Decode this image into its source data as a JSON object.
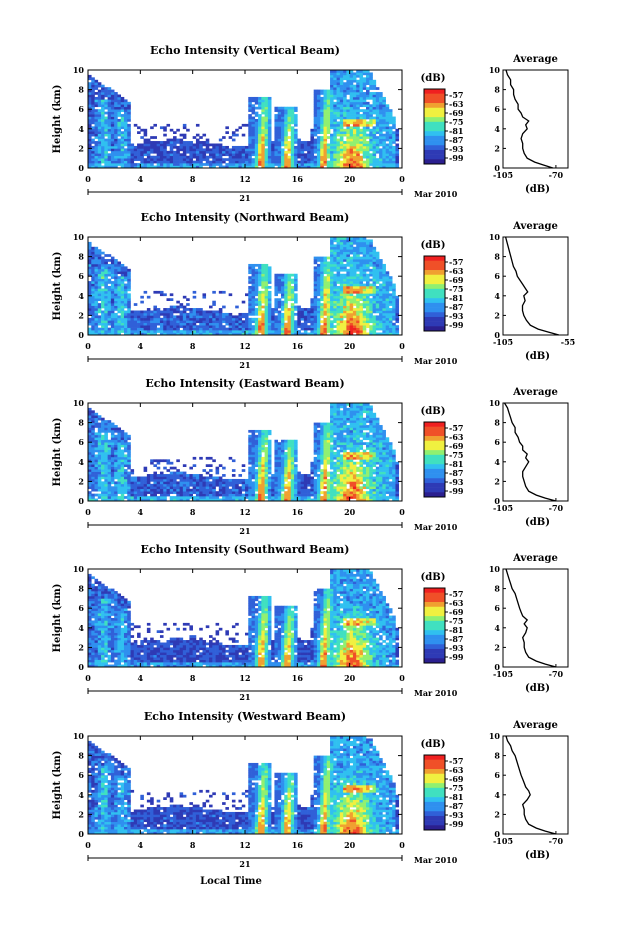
{
  "chart_data": [
    {
      "type": "heatmap",
      "title": "Echo Intensity (Vertical Beam)",
      "ylabel": "Height (km)",
      "ylim": [
        0,
        10
      ],
      "yticks": [
        "0",
        "2",
        "4",
        "6",
        "8",
        "10"
      ],
      "xlim": [
        0,
        24
      ],
      "xticks": [
        "0",
        "4",
        "8",
        "12",
        "16",
        "20",
        "0"
      ],
      "date_day": "21",
      "date_month": "Mar 2010",
      "colorbar": {
        "label": "(dB)",
        "ticks": [
          "-57",
          "-63",
          "-69",
          "-75",
          "-81",
          "-87",
          "-93",
          "-99"
        ]
      },
      "profile": {
        "title": "Average",
        "xlabel": "(dB)",
        "xticks": [
          "-105",
          "-70"
        ],
        "xlim": [
          -105,
          -62
        ],
        "ylim": [
          0,
          10
        ],
        "yticks": [
          "0",
          "2",
          "4",
          "6",
          "8",
          "10"
        ],
        "points": [
          [
            -72,
            0
          ],
          [
            -78,
            0.3
          ],
          [
            -84,
            0.6
          ],
          [
            -89,
            1.0
          ],
          [
            -91,
            1.5
          ],
          [
            -92,
            2.0
          ],
          [
            -92,
            2.5
          ],
          [
            -93,
            3.0
          ],
          [
            -92,
            3.5
          ],
          [
            -89,
            4.0
          ],
          [
            -90,
            4.4
          ],
          [
            -88,
            4.8
          ],
          [
            -92,
            5.2
          ],
          [
            -93,
            5.6
          ],
          [
            -95,
            6.0
          ],
          [
            -95,
            6.5
          ],
          [
            -97,
            7.0
          ],
          [
            -98,
            7.5
          ],
          [
            -98,
            8.0
          ],
          [
            -100,
            8.5
          ],
          [
            -100,
            9.0
          ],
          [
            -102,
            9.5
          ],
          [
            -103,
            10.0
          ]
        ]
      }
    },
    {
      "type": "heatmap",
      "title": "Echo Intensity (Northward Beam)",
      "ylabel": "Height (km)",
      "ylim": [
        0,
        10
      ],
      "yticks": [
        "0",
        "2",
        "4",
        "6",
        "8",
        "10"
      ],
      "xlim": [
        0,
        24
      ],
      "xticks": [
        "0",
        "4",
        "8",
        "12",
        "16",
        "20",
        "0"
      ],
      "date_day": "21",
      "date_month": "Mar 2010",
      "colorbar": {
        "label": "(dB)",
        "ticks": [
          "-57",
          "-63",
          "-69",
          "-75",
          "-81",
          "-87",
          "-93",
          "-99"
        ]
      },
      "profile": {
        "title": "Average",
        "xlabel": "(dB)",
        "xticks": [
          "-105",
          "-55"
        ],
        "xlim": [
          -105,
          -55
        ],
        "ylim": [
          0,
          10
        ],
        "yticks": [
          "0",
          "2",
          "4",
          "6",
          "8",
          "10"
        ],
        "points": [
          [
            -62,
            0
          ],
          [
            -70,
            0.3
          ],
          [
            -78,
            0.6
          ],
          [
            -84,
            1.0
          ],
          [
            -87,
            1.5
          ],
          [
            -89,
            2.0
          ],
          [
            -90,
            2.5
          ],
          [
            -90,
            3.0
          ],
          [
            -88,
            3.5
          ],
          [
            -89,
            4.0
          ],
          [
            -86,
            4.4
          ],
          [
            -88,
            4.8
          ],
          [
            -90,
            5.2
          ],
          [
            -92,
            5.6
          ],
          [
            -94,
            6.0
          ],
          [
            -95,
            6.5
          ],
          [
            -97,
            7.0
          ],
          [
            -98,
            7.5
          ],
          [
            -99,
            8.0
          ],
          [
            -100,
            8.5
          ],
          [
            -101,
            9.0
          ],
          [
            -102,
            9.5
          ],
          [
            -103,
            10.0
          ]
        ]
      }
    },
    {
      "type": "heatmap",
      "title": "Echo Intensity (Eastward Beam)",
      "ylabel": "Height (km)",
      "ylim": [
        0,
        10
      ],
      "yticks": [
        "0",
        "2",
        "4",
        "6",
        "8",
        "10"
      ],
      "xlim": [
        0,
        24
      ],
      "xticks": [
        "0",
        "4",
        "8",
        "12",
        "16",
        "20",
        "0"
      ],
      "date_day": "21",
      "date_month": "Mar 2010",
      "colorbar": {
        "label": "(dB)",
        "ticks": [
          "-57",
          "-63",
          "-69",
          "-75",
          "-81",
          "-87",
          "-93",
          "-99"
        ]
      },
      "profile": {
        "title": "Average",
        "xlabel": "(dB)",
        "xticks": [
          "-105",
          "-70"
        ],
        "xlim": [
          -105,
          -62
        ],
        "ylim": [
          0,
          10
        ],
        "yticks": [
          "0",
          "2",
          "4",
          "6",
          "8",
          "10"
        ],
        "points": [
          [
            -70,
            0
          ],
          [
            -77,
            0.3
          ],
          [
            -83,
            0.6
          ],
          [
            -88,
            1.0
          ],
          [
            -90,
            1.5
          ],
          [
            -91,
            2.0
          ],
          [
            -92,
            2.5
          ],
          [
            -92,
            3.0
          ],
          [
            -90,
            3.5
          ],
          [
            -88,
            4.0
          ],
          [
            -90,
            4.4
          ],
          [
            -89,
            4.8
          ],
          [
            -92,
            5.2
          ],
          [
            -92,
            5.6
          ],
          [
            -94,
            6.0
          ],
          [
            -95,
            6.5
          ],
          [
            -97,
            7.0
          ],
          [
            -97,
            7.5
          ],
          [
            -99,
            8.0
          ],
          [
            -100,
            8.5
          ],
          [
            -101,
            9.0
          ],
          [
            -102,
            9.5
          ],
          [
            -104,
            10.0
          ]
        ]
      }
    },
    {
      "type": "heatmap",
      "title": "Echo Intensity (Southward Beam)",
      "ylabel": "Height (km)",
      "ylim": [
        0,
        10
      ],
      "yticks": [
        "0",
        "2",
        "4",
        "6",
        "8",
        "10"
      ],
      "xlim": [
        0,
        24
      ],
      "xticks": [
        "0",
        "4",
        "8",
        "12",
        "16",
        "20",
        "0"
      ],
      "date_day": "21",
      "date_month": "Mar 2010",
      "colorbar": {
        "label": "(dB)",
        "ticks": [
          "-57",
          "-63",
          "-69",
          "-75",
          "-81",
          "-87",
          "-93",
          "-99"
        ]
      },
      "profile": {
        "title": "Average",
        "xlabel": "(dB)",
        "xticks": [
          "-105",
          "-70"
        ],
        "xlim": [
          -105,
          -62
        ],
        "ylim": [
          0,
          10
        ],
        "yticks": [
          "0",
          "2",
          "4",
          "6",
          "8",
          "10"
        ],
        "points": [
          [
            -70,
            0
          ],
          [
            -77,
            0.3
          ],
          [
            -83,
            0.6
          ],
          [
            -88,
            1.0
          ],
          [
            -90,
            1.5
          ],
          [
            -91,
            2.0
          ],
          [
            -91,
            2.5
          ],
          [
            -92,
            3.0
          ],
          [
            -90,
            3.5
          ],
          [
            -89,
            4.0
          ],
          [
            -91,
            4.4
          ],
          [
            -89,
            4.8
          ],
          [
            -92,
            5.2
          ],
          [
            -93,
            5.6
          ],
          [
            -94,
            6.0
          ],
          [
            -95,
            6.5
          ],
          [
            -96,
            7.0
          ],
          [
            -97,
            7.5
          ],
          [
            -99,
            8.0
          ],
          [
            -100,
            8.5
          ],
          [
            -101,
            9.0
          ],
          [
            -102,
            9.5
          ],
          [
            -103,
            10.0
          ]
        ]
      }
    },
    {
      "type": "heatmap",
      "title": "Echo Intensity (Westward Beam)",
      "ylabel": "Height (km)",
      "ylim": [
        0,
        10
      ],
      "yticks": [
        "0",
        "2",
        "4",
        "6",
        "8",
        "10"
      ],
      "xlim": [
        0,
        24
      ],
      "xticks": [
        "0",
        "4",
        "8",
        "12",
        "16",
        "20",
        "0"
      ],
      "date_day": "21",
      "date_month": "Mar 2010",
      "xlabel": "Local Time",
      "colorbar": {
        "label": "(dB)",
        "ticks": [
          "-57",
          "-63",
          "-69",
          "-75",
          "-81",
          "-87",
          "-93",
          "-99"
        ]
      },
      "profile": {
        "title": "Average",
        "xlabel": "(dB)",
        "xticks": [
          "-105",
          "-70"
        ],
        "xlim": [
          -105,
          -62
        ],
        "ylim": [
          0,
          10
        ],
        "yticks": [
          "0",
          "2",
          "4",
          "6",
          "8",
          "10"
        ],
        "points": [
          [
            -70,
            0
          ],
          [
            -77,
            0.3
          ],
          [
            -83,
            0.6
          ],
          [
            -88,
            1.0
          ],
          [
            -90,
            1.5
          ],
          [
            -91,
            2.0
          ],
          [
            -91,
            2.5
          ],
          [
            -92,
            3.0
          ],
          [
            -89,
            3.5
          ],
          [
            -87,
            4.0
          ],
          [
            -88,
            4.4
          ],
          [
            -90,
            4.8
          ],
          [
            -91,
            5.2
          ],
          [
            -92,
            5.6
          ],
          [
            -93,
            6.0
          ],
          [
            -94,
            6.5
          ],
          [
            -95,
            7.0
          ],
          [
            -96,
            7.5
          ],
          [
            -97,
            8.0
          ],
          [
            -99,
            8.5
          ],
          [
            -100,
            9.0
          ],
          [
            -102,
            9.5
          ],
          [
            -103,
            10.0
          ]
        ]
      }
    }
  ],
  "colors": [
    "#2b1f8f",
    "#2e3ab5",
    "#3060d8",
    "#2f90ef",
    "#30c0f0",
    "#40e0c0",
    "#90f070",
    "#f0f040",
    "#f0a030",
    "#f05028",
    "#f02020"
  ]
}
